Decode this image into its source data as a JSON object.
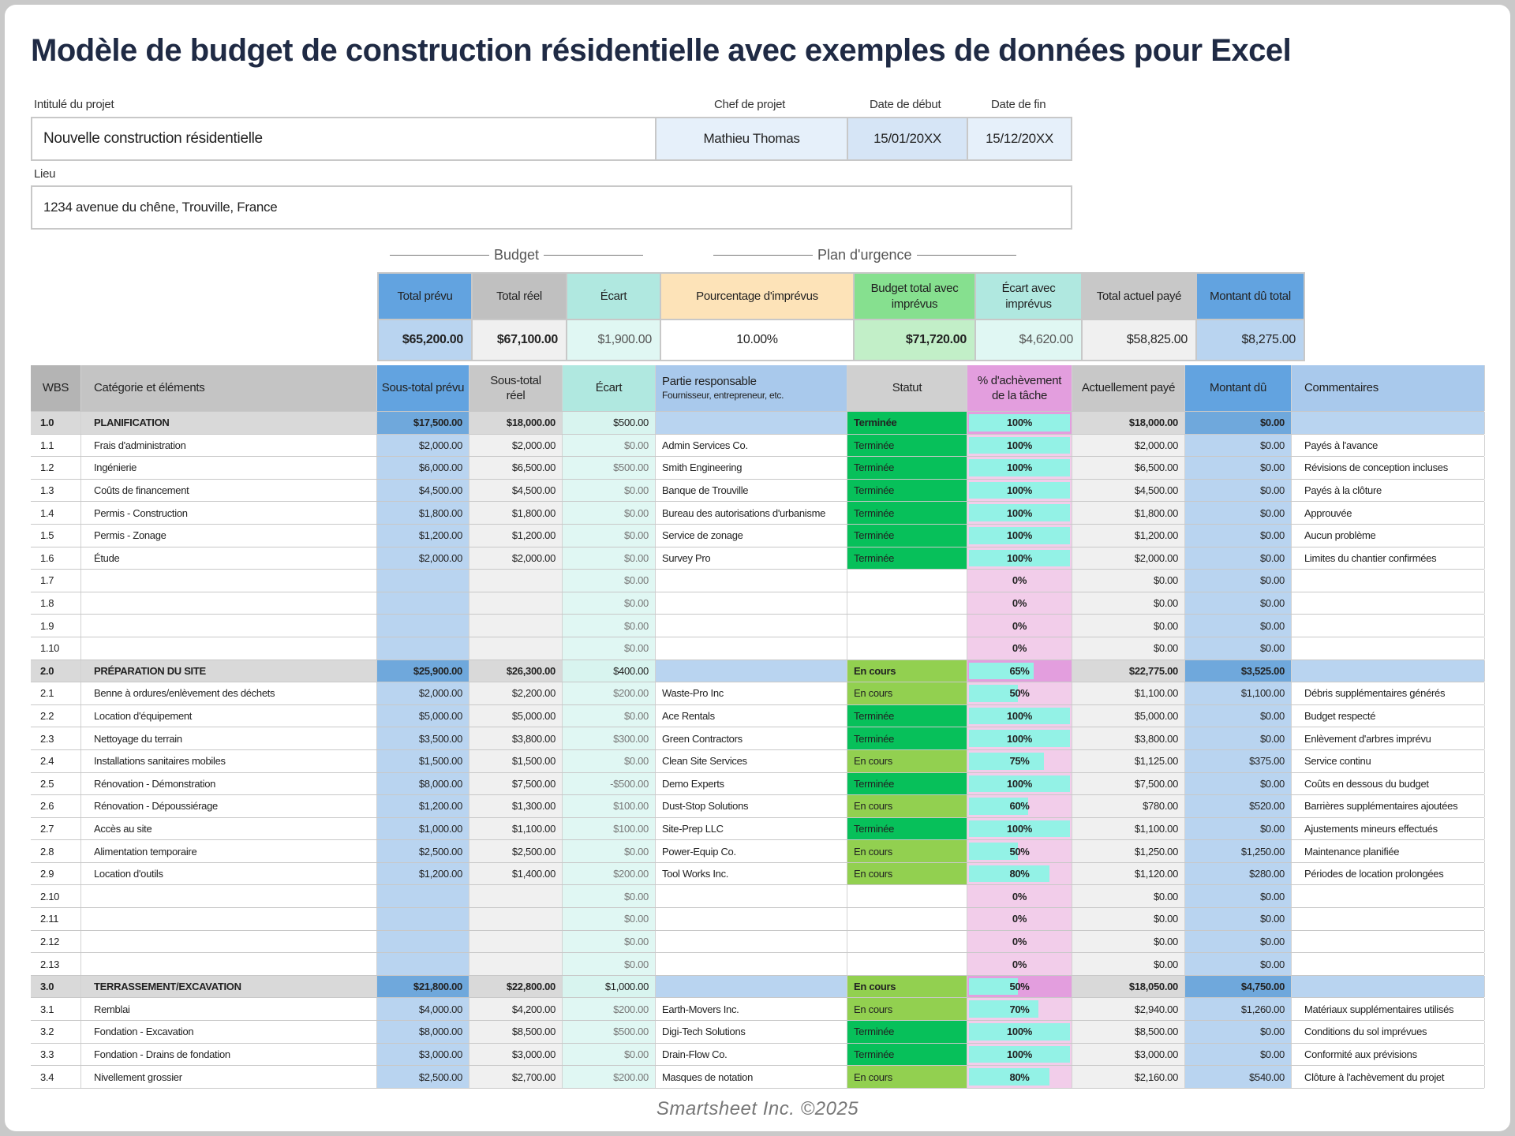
{
  "title": "Modèle de budget de construction résidentielle avec exemples de données pour Excel",
  "project": {
    "title_label": "Intitulé du projet",
    "title": "Nouvelle construction résidentielle",
    "manager_label": "Chef de projet",
    "manager": "Mathieu Thomas",
    "start_label": "Date de début",
    "start": "15/01/20XX",
    "end_label": "Date de fin",
    "end": "15/12/20XX",
    "location_label": "Lieu",
    "location": "1234 avenue du chêne, Trouville, France"
  },
  "groups": {
    "budget": "Budget",
    "contingency": "Plan d'urgence"
  },
  "summary": {
    "headers": [
      "Total prévu",
      "Total réel",
      "Écart",
      "Pourcentage d'imprévus",
      "Budget total avec imprévus",
      "Écart avec imprévus",
      "Total actuel payé",
      "Montant dû total"
    ],
    "values": [
      "$65,200.00",
      "$67,100.00",
      "$1,900.00",
      "10.00%",
      "$71,720.00",
      "$4,620.00",
      "$58,825.00",
      "$8,275.00"
    ]
  },
  "table": {
    "headers": [
      "WBS",
      "Catégorie et éléments",
      "Sous-total prévu",
      "Sous-total réel",
      "Écart",
      "Partie responsable",
      "Statut",
      "% d'achèvement de la tâche",
      "Actuellement payé",
      "Montant dû",
      "Commentaires"
    ],
    "responsible_sub": "Fournisseur, entrepreneur, etc.",
    "rows": [
      {
        "section": true,
        "c": [
          "1.0",
          "PLANIFICATION",
          "$17,500.00",
          "$18,000.00",
          "$500.00",
          "",
          "Terminée",
          "100%",
          "$18,000.00",
          "$0.00",
          ""
        ]
      },
      {
        "c": [
          "1.1",
          "Frais d'administration",
          "$2,000.00",
          "$2,000.00",
          "$0.00",
          "Admin Services Co.",
          "Terminée",
          "100%",
          "$2,000.00",
          "$0.00",
          "Payés à l'avance"
        ]
      },
      {
        "c": [
          "1.2",
          "Ingénierie",
          "$6,000.00",
          "$6,500.00",
          "$500.00",
          "Smith Engineering",
          "Terminée",
          "100%",
          "$6,500.00",
          "$0.00",
          "Révisions de conception incluses"
        ]
      },
      {
        "c": [
          "1.3",
          "Coûts de financement",
          "$4,500.00",
          "$4,500.00",
          "$0.00",
          "Banque de Trouville",
          "Terminée",
          "100%",
          "$4,500.00",
          "$0.00",
          "Payés à la clôture"
        ]
      },
      {
        "c": [
          "1.4",
          "Permis - Construction",
          "$1,800.00",
          "$1,800.00",
          "$0.00",
          "Bureau des autorisations d'urbanisme",
          "Terminée",
          "100%",
          "$1,800.00",
          "$0.00",
          "Approuvée"
        ]
      },
      {
        "c": [
          "1.5",
          "Permis - Zonage",
          "$1,200.00",
          "$1,200.00",
          "$0.00",
          "Service de zonage",
          "Terminée",
          "100%",
          "$1,200.00",
          "$0.00",
          "Aucun problème"
        ]
      },
      {
        "c": [
          "1.6",
          "Étude",
          "$2,000.00",
          "$2,000.00",
          "$0.00",
          "Survey Pro",
          "Terminée",
          "100%",
          "$2,000.00",
          "$0.00",
          "Limites du chantier confirmées"
        ]
      },
      {
        "c": [
          "1.7",
          "",
          "",
          "",
          "$0.00",
          "",
          "",
          "0%",
          "$0.00",
          "$0.00",
          ""
        ]
      },
      {
        "c": [
          "1.8",
          "",
          "",
          "",
          "$0.00",
          "",
          "",
          "0%",
          "$0.00",
          "$0.00",
          ""
        ]
      },
      {
        "c": [
          "1.9",
          "",
          "",
          "",
          "$0.00",
          "",
          "",
          "0%",
          "$0.00",
          "$0.00",
          ""
        ]
      },
      {
        "c": [
          "1.10",
          "",
          "",
          "",
          "$0.00",
          "",
          "",
          "0%",
          "$0.00",
          "$0.00",
          ""
        ]
      },
      {
        "section": true,
        "c": [
          "2.0",
          "PRÉPARATION DU SITE",
          "$25,900.00",
          "$26,300.00",
          "$400.00",
          "",
          "En cours",
          "65%",
          "$22,775.00",
          "$3,525.00",
          ""
        ]
      },
      {
        "c": [
          "2.1",
          "Benne à ordures/enlèvement des déchets",
          "$2,000.00",
          "$2,200.00",
          "$200.00",
          "Waste-Pro Inc",
          "En cours",
          "50%",
          "$1,100.00",
          "$1,100.00",
          "Débris supplémentaires générés"
        ]
      },
      {
        "c": [
          "2.2",
          "Location d'équipement",
          "$5,000.00",
          "$5,000.00",
          "$0.00",
          "Ace Rentals",
          "Terminée",
          "100%",
          "$5,000.00",
          "$0.00",
          "Budget respecté"
        ]
      },
      {
        "c": [
          "2.3",
          "Nettoyage du terrain",
          "$3,500.00",
          "$3,800.00",
          "$300.00",
          "Green Contractors",
          "Terminée",
          "100%",
          "$3,800.00",
          "$0.00",
          "Enlèvement d'arbres imprévu"
        ]
      },
      {
        "c": [
          "2.4",
          "Installations sanitaires mobiles",
          "$1,500.00",
          "$1,500.00",
          "$0.00",
          "Clean Site Services",
          "En cours",
          "75%",
          "$1,125.00",
          "$375.00",
          "Service continu"
        ]
      },
      {
        "c": [
          "2.5",
          "Rénovation - Démonstration",
          "$8,000.00",
          "$7,500.00",
          "-$500.00",
          "Demo Experts",
          "Terminée",
          "100%",
          "$7,500.00",
          "$0.00",
          "Coûts en dessous du budget"
        ]
      },
      {
        "c": [
          "2.6",
          "Rénovation - Dépoussiérage",
          "$1,200.00",
          "$1,300.00",
          "$100.00",
          "Dust-Stop Solutions",
          "En cours",
          "60%",
          "$780.00",
          "$520.00",
          "Barrières supplémentaires ajoutées"
        ]
      },
      {
        "c": [
          "2.7",
          "Accès au site",
          "$1,000.00",
          "$1,100.00",
          "$100.00",
          "Site-Prep LLC",
          "Terminée",
          "100%",
          "$1,100.00",
          "$0.00",
          "Ajustements mineurs effectués"
        ]
      },
      {
        "c": [
          "2.8",
          "Alimentation temporaire",
          "$2,500.00",
          "$2,500.00",
          "$0.00",
          "Power-Equip Co.",
          "En cours",
          "50%",
          "$1,250.00",
          "$1,250.00",
          "Maintenance planifiée"
        ]
      },
      {
        "c": [
          "2.9",
          "Location d'outils",
          "$1,200.00",
          "$1,400.00",
          "$200.00",
          "Tool Works Inc.",
          "En cours",
          "80%",
          "$1,120.00",
          "$280.00",
          "Périodes de location prolongées"
        ]
      },
      {
        "c": [
          "2.10",
          "",
          "",
          "",
          "$0.00",
          "",
          "",
          "0%",
          "$0.00",
          "$0.00",
          ""
        ]
      },
      {
        "c": [
          "2.11",
          "",
          "",
          "",
          "$0.00",
          "",
          "",
          "0%",
          "$0.00",
          "$0.00",
          ""
        ]
      },
      {
        "c": [
          "2.12",
          "",
          "",
          "",
          "$0.00",
          "",
          "",
          "0%",
          "$0.00",
          "$0.00",
          ""
        ]
      },
      {
        "c": [
          "2.13",
          "",
          "",
          "",
          "$0.00",
          "",
          "",
          "0%",
          "$0.00",
          "$0.00",
          ""
        ]
      },
      {
        "section": true,
        "c": [
          "3.0",
          "TERRASSEMENT/EXCAVATION",
          "$21,800.00",
          "$22,800.00",
          "$1,000.00",
          "",
          "En cours",
          "50%",
          "$18,050.00",
          "$4,750.00",
          ""
        ]
      },
      {
        "c": [
          "3.1",
          "Remblai",
          "$4,000.00",
          "$4,200.00",
          "$200.00",
          "Earth-Movers Inc.",
          "En cours",
          "70%",
          "$2,940.00",
          "$1,260.00",
          "Matériaux supplémentaires utilisés"
        ]
      },
      {
        "c": [
          "3.2",
          "Fondation - Excavation",
          "$8,000.00",
          "$8,500.00",
          "$500.00",
          "Digi-Tech Solutions",
          "Terminée",
          "100%",
          "$8,500.00",
          "$0.00",
          "Conditions du sol imprévues"
        ]
      },
      {
        "c": [
          "3.3",
          "Fondation - Drains de fondation",
          "$3,000.00",
          "$3,000.00",
          "$0.00",
          "Drain-Flow Co.",
          "Terminée",
          "100%",
          "$3,000.00",
          "$0.00",
          "Conformité aux prévisions"
        ]
      },
      {
        "c": [
          "3.4",
          "Nivellement grossier",
          "$2,500.00",
          "$2,700.00",
          "$200.00",
          "Masques de notation",
          "En cours",
          "80%",
          "$2,160.00",
          "$540.00",
          "Clôture à l'achèvement du projet"
        ]
      }
    ]
  },
  "colors": {
    "complete": "#07c05a",
    "in_progress": "#92d050",
    "bar": "#93f2e6"
  },
  "footer": "Smartsheet Inc. ©2025"
}
